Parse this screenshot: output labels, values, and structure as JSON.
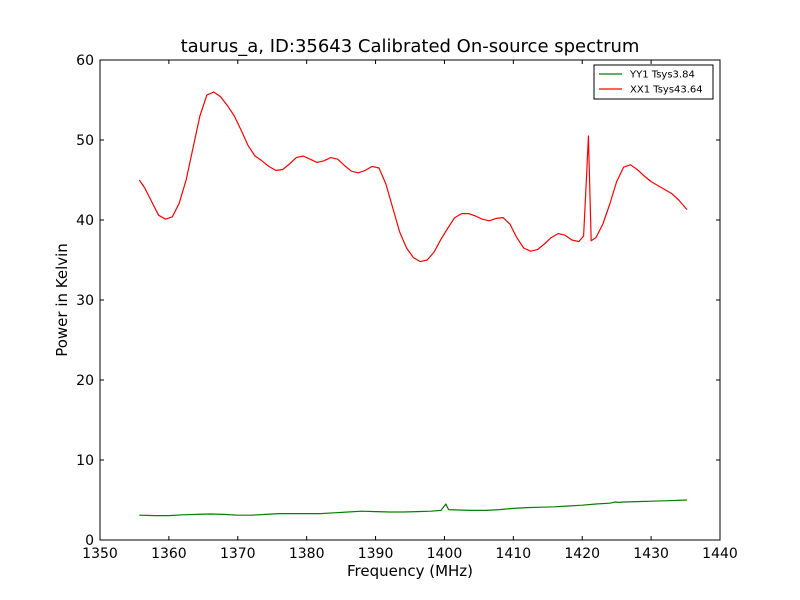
{
  "chart_data": {
    "type": "line",
    "title": "taurus_a, ID:35643 Calibrated On-source spectrum",
    "xlabel": "Frequency (MHz)",
    "ylabel": "Power in Kelvin",
    "xlim": [
      1350,
      1440
    ],
    "ylim": [
      0,
      60
    ],
    "xticks": [
      1350,
      1360,
      1370,
      1380,
      1390,
      1400,
      1410,
      1420,
      1430,
      1440
    ],
    "yticks": [
      0,
      10,
      20,
      30,
      40,
      50,
      60
    ],
    "grid": false,
    "legend": "top-right",
    "series": [
      {
        "name": "YY1 Tsys3.84",
        "color": "#008000",
        "x": [
          1355.7,
          1358,
          1360,
          1362,
          1364,
          1366,
          1368,
          1370,
          1372,
          1374,
          1376,
          1378,
          1380,
          1382,
          1384,
          1386,
          1388,
          1390,
          1392,
          1394,
          1396,
          1398,
          1399.5,
          1400.2,
          1400.6,
          1402,
          1404,
          1406,
          1408,
          1410,
          1412,
          1414,
          1416,
          1418,
          1420,
          1422,
          1424,
          1424.8,
          1425.3,
          1426,
          1428,
          1430,
          1432,
          1435.2
        ],
        "y": [
          3.1,
          3.05,
          3.05,
          3.15,
          3.2,
          3.25,
          3.2,
          3.1,
          3.1,
          3.2,
          3.3,
          3.3,
          3.3,
          3.3,
          3.4,
          3.5,
          3.6,
          3.55,
          3.5,
          3.5,
          3.55,
          3.6,
          3.7,
          4.5,
          3.8,
          3.75,
          3.7,
          3.7,
          3.8,
          3.95,
          4.05,
          4.1,
          4.15,
          4.25,
          4.35,
          4.5,
          4.6,
          4.75,
          4.7,
          4.75,
          4.8,
          4.85,
          4.9,
          5.0
        ]
      },
      {
        "name": "XX1 Tsys43.64",
        "color": "#ff0000",
        "x": [
          1355.7,
          1356.5,
          1357.5,
          1358.5,
          1359.5,
          1360.5,
          1361.5,
          1362.5,
          1363.5,
          1364.5,
          1365.5,
          1366.5,
          1367.5,
          1368.5,
          1369.5,
          1370.5,
          1371.5,
          1372.5,
          1373.5,
          1374.5,
          1375.5,
          1376.5,
          1377.5,
          1378.5,
          1379.5,
          1380.5,
          1381.5,
          1382.5,
          1383.5,
          1384.5,
          1385.5,
          1386.5,
          1387.5,
          1388.5,
          1389.5,
          1390.5,
          1391.5,
          1392.5,
          1393.5,
          1394.5,
          1395.5,
          1396.5,
          1397.5,
          1398.5,
          1399.5,
          1400.5,
          1401.5,
          1402.5,
          1403.5,
          1404.5,
          1405.5,
          1406.5,
          1407.5,
          1408.5,
          1409.5,
          1410.5,
          1411.5,
          1412.5,
          1413.5,
          1414.5,
          1415.5,
          1416.5,
          1417.5,
          1418.5,
          1419.5,
          1420.2,
          1420.6,
          1420.9,
          1421.3,
          1422,
          1423,
          1424,
          1425,
          1426,
          1427,
          1428,
          1429,
          1430,
          1431,
          1432,
          1433,
          1434,
          1435.2
        ],
        "y": [
          45.0,
          44.0,
          42.3,
          40.6,
          40.1,
          40.4,
          42.1,
          45.0,
          49.0,
          53.0,
          55.6,
          56.0,
          55.4,
          54.3,
          53.0,
          51.2,
          49.3,
          48.0,
          47.4,
          46.7,
          46.2,
          46.3,
          47.0,
          47.8,
          48.0,
          47.6,
          47.2,
          47.4,
          47.8,
          47.6,
          46.8,
          46.1,
          45.9,
          46.2,
          46.7,
          46.5,
          44.5,
          41.5,
          38.5,
          36.5,
          35.3,
          34.8,
          35.0,
          36.0,
          37.6,
          39.0,
          40.3,
          40.8,
          40.8,
          40.5,
          40.1,
          39.9,
          40.2,
          40.3,
          39.5,
          37.8,
          36.5,
          36.1,
          36.3,
          37.0,
          37.8,
          38.3,
          38.1,
          37.5,
          37.3,
          38.0,
          45.0,
          50.5,
          37.4,
          37.8,
          39.5,
          42.0,
          44.8,
          46.6,
          46.9,
          46.3,
          45.5,
          44.8,
          44.3,
          43.8,
          43.3,
          42.5,
          41.3
        ]
      }
    ]
  }
}
